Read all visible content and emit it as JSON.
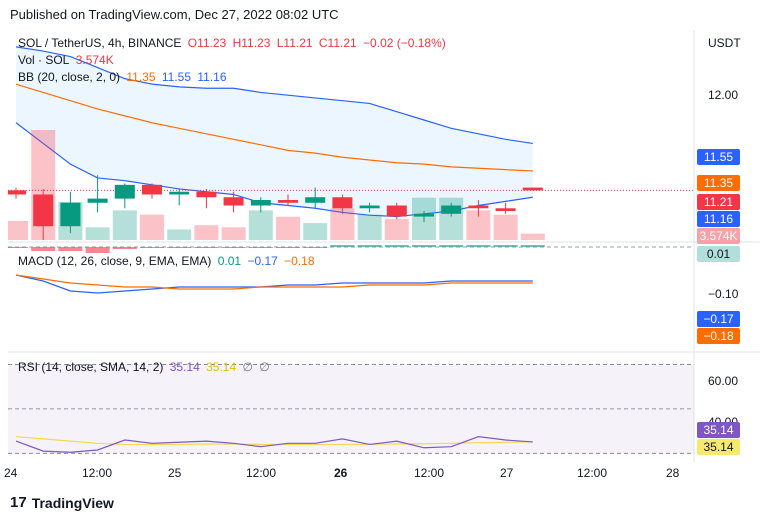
{
  "published": "Published on TradingView.com, Dec 27, 2022 08:02 UTC",
  "legend": {
    "symbol": "SOL / TetherUS, 4h, BINANCE",
    "o": "O11.23",
    "h": "H11.23",
    "l": "L11.21",
    "c": "C11.21",
    "chg": "−0.02 (−0.18%)",
    "vol_label": "Vol · SOL",
    "vol_value": "3.574K",
    "bb_label": "BB (20, close, 2, 0)",
    "bb_mid": "11.35",
    "bb_up": "11.55",
    "bb_low": "11.16",
    "macd_label": "MACD (12, 26, close, 9, EMA, EMA)",
    "macd_hist": "0.01",
    "macd_line": "−0.17",
    "macd_signal": "−0.18",
    "rsi_label": "RSI (14, close, SMA, 14, 2)",
    "rsi_value": "35.14",
    "rsi_ma": "35.14",
    "rsi_x1": "∅",
    "rsi_x2": "∅"
  },
  "price_axis": {
    "currency": "USDT",
    "tick_12": "12.00",
    "tick_macd": "−0.10",
    "tick_rsi60": "60.00",
    "tick_rsi40": "40.00"
  },
  "badges": {
    "bb_up": "11.55",
    "bb_mid": "11.35",
    "price": "11.21",
    "bb_low": "11.16",
    "volume": "3.574K",
    "macd_hist": "0.01",
    "macd_line": "−0.17",
    "macd_signal": "−0.18",
    "rsi": "35.14",
    "rsi_ma": "35.14"
  },
  "time_axis": [
    "24",
    "12:00",
    "25",
    "12:00",
    "26",
    "12:00",
    "27",
    "12:00",
    "28"
  ],
  "colors": {
    "up": "#089981",
    "down": "#f23645",
    "bb_mid": "#ff6d00",
    "bb_band": "#2962ff",
    "rsi": "#7e57c2",
    "rsi_ma": "#f7d94c"
  },
  "footer_logo": "TradingView",
  "chart_data": {
    "type": "candlestick",
    "candles": [
      {
        "o": 11.21,
        "h": 11.23,
        "l": 11.15,
        "c": 11.18
      },
      {
        "o": 11.18,
        "h": 11.22,
        "l": 10.85,
        "c": 10.95
      },
      {
        "o": 10.95,
        "h": 11.2,
        "l": 10.9,
        "c": 11.12
      },
      {
        "o": 11.12,
        "h": 11.32,
        "l": 11.05,
        "c": 11.15
      },
      {
        "o": 11.15,
        "h": 11.26,
        "l": 11.08,
        "c": 11.25
      },
      {
        "o": 11.25,
        "h": 11.26,
        "l": 11.15,
        "c": 11.18
      },
      {
        "o": 11.18,
        "h": 11.22,
        "l": 11.1,
        "c": 11.2
      },
      {
        "o": 11.2,
        "h": 11.22,
        "l": 11.08,
        "c": 11.16
      },
      {
        "o": 11.16,
        "h": 11.2,
        "l": 11.05,
        "c": 11.1
      },
      {
        "o": 11.1,
        "h": 11.16,
        "l": 11.05,
        "c": 11.14
      },
      {
        "o": 11.14,
        "h": 11.18,
        "l": 11.1,
        "c": 11.12
      },
      {
        "o": 11.12,
        "h": 11.23,
        "l": 11.08,
        "c": 11.16
      },
      {
        "o": 11.16,
        "h": 11.18,
        "l": 11.04,
        "c": 11.08
      },
      {
        "o": 11.08,
        "h": 11.12,
        "l": 11.05,
        "c": 11.1
      },
      {
        "o": 11.1,
        "h": 11.12,
        "l": 11.0,
        "c": 11.02
      },
      {
        "o": 11.02,
        "h": 11.06,
        "l": 10.98,
        "c": 11.04
      },
      {
        "o": 11.04,
        "h": 11.12,
        "l": 11.02,
        "c": 11.1
      },
      {
        "o": 11.1,
        "h": 11.14,
        "l": 11.02,
        "c": 11.08
      },
      {
        "o": 11.08,
        "h": 11.12,
        "l": 11.04,
        "c": 11.06
      },
      {
        "o": 11.23,
        "h": 11.23,
        "l": 11.21,
        "c": 11.21
      }
    ],
    "bb_upper": [
      12.25,
      12.22,
      12.18,
      12.1,
      12.02,
      11.98,
      11.96,
      11.95,
      11.95,
      11.92,
      11.9,
      11.88,
      11.86,
      11.84,
      11.78,
      11.72,
      11.66,
      11.62,
      11.58,
      11.55
    ],
    "bb_middle": [
      11.98,
      11.92,
      11.86,
      11.8,
      11.75,
      11.7,
      11.66,
      11.62,
      11.58,
      11.54,
      11.5,
      11.48,
      11.45,
      11.43,
      11.41,
      11.4,
      11.38,
      11.37,
      11.36,
      11.35
    ],
    "bb_lower": [
      11.7,
      11.55,
      11.4,
      11.3,
      11.28,
      11.25,
      11.22,
      11.2,
      11.18,
      11.12,
      11.1,
      11.08,
      11.05,
      11.03,
      11.02,
      11.04,
      11.06,
      11.1,
      11.13,
      11.16
    ],
    "volume": [
      0.9,
      5.2,
      1.8,
      0.6,
      1.4,
      1.2,
      0.5,
      0.7,
      0.6,
      1.4,
      1.1,
      0.8,
      1.5,
      1.2,
      1.0,
      2.0,
      2.0,
      1.4,
      1.2,
      0.3
    ],
    "macd_hist": [
      0.0,
      -0.02,
      -0.02,
      -0.03,
      -0.01,
      0.0,
      0.0,
      0.0,
      0.0,
      0.0,
      0.0,
      0.0,
      0.01,
      0.01,
      0.01,
      0.01,
      0.01,
      0.01,
      0.01,
      0.01
    ],
    "macd_line": [
      -0.14,
      -0.17,
      -0.22,
      -0.23,
      -0.22,
      -0.21,
      -0.2,
      -0.2,
      -0.2,
      -0.2,
      -0.19,
      -0.19,
      -0.18,
      -0.18,
      -0.18,
      -0.18,
      -0.17,
      -0.17,
      -0.17,
      -0.17
    ],
    "macd_signal": [
      -0.14,
      -0.16,
      -0.18,
      -0.19,
      -0.2,
      -0.2,
      -0.21,
      -0.21,
      -0.21,
      -0.2,
      -0.2,
      -0.2,
      -0.2,
      -0.19,
      -0.19,
      -0.19,
      -0.18,
      -0.18,
      -0.18,
      -0.18
    ],
    "rsi": [
      35.5,
      31.0,
      30.5,
      31.5,
      36.0,
      34.5,
      35.0,
      35.5,
      34.5,
      33.0,
      34.5,
      34.5,
      36.5,
      34.0,
      35.5,
      32.5,
      33.0,
      37.5,
      36.0,
      35.14
    ],
    "rsi_ma": [
      37.5,
      36.5,
      35.5,
      34.5,
      34.0,
      34.0,
      34.0,
      34.2,
      34.2,
      34.0,
      34.0,
      34.0,
      34.0,
      34.1,
      34.2,
      34.3,
      34.5,
      34.8,
      35.0,
      35.14
    ],
    "price_range": [
      10.85,
      12.3
    ],
    "rsi_levels": [
      70,
      50,
      30
    ]
  }
}
